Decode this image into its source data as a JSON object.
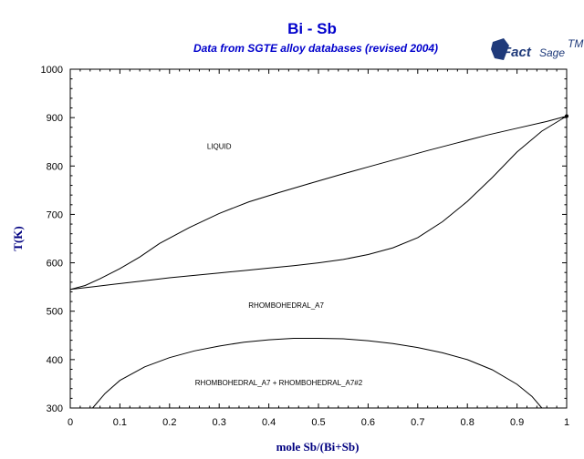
{
  "chart_data": {
    "type": "line",
    "title": "Bi - Sb",
    "subtitle": "Data from SGTE alloy databases (revised 2004)",
    "logo": {
      "brand": "Fact",
      "brand2": "Sage",
      "mark": "TM"
    },
    "xlabel": "mole Sb/(Bi+Sb)",
    "ylabel": "T(K)",
    "xlim": [
      0,
      1
    ],
    "ylim": [
      300,
      1000
    ],
    "xticks": [
      0,
      0.1,
      0.2,
      0.3,
      0.4,
      0.5,
      0.6,
      0.7,
      0.8,
      0.9,
      1
    ],
    "yticks": [
      300,
      400,
      500,
      600,
      700,
      800,
      900,
      1000
    ],
    "grid": false,
    "series": [
      {
        "x": [
          0,
          0.03,
          0.06,
          0.1,
          0.14,
          0.18,
          0.24,
          0.3,
          0.36,
          0.42,
          0.48,
          0.54,
          0.6,
          0.66,
          0.72,
          0.78,
          0.84,
          0.9,
          0.96,
          1.0
        ],
        "y": [
          545,
          553,
          567,
          588,
          612,
          640,
          673,
          702,
          726,
          745,
          763,
          781,
          798,
          815,
          832,
          848,
          864,
          878,
          892,
          903
        ]
      },
      {
        "x": [
          0,
          0.05,
          0.1,
          0.15,
          0.2,
          0.25,
          0.3,
          0.35,
          0.4,
          0.45,
          0.5,
          0.55,
          0.6,
          0.65,
          0.7,
          0.75,
          0.8,
          0.85,
          0.9,
          0.95,
          1.0
        ],
        "y": [
          545,
          551,
          557,
          563,
          569,
          574,
          579,
          584,
          589,
          594,
          600,
          607,
          617,
          631,
          652,
          685,
          727,
          776,
          829,
          872,
          903
        ]
      },
      {
        "x": [
          0.045,
          0.07,
          0.1,
          0.15,
          0.2,
          0.25,
          0.3,
          0.35,
          0.4,
          0.45,
          0.5,
          0.55,
          0.6,
          0.65,
          0.7,
          0.75,
          0.8,
          0.85,
          0.9,
          0.93,
          0.95
        ],
        "y": [
          300,
          330,
          357,
          385,
          404,
          418,
          428,
          436,
          441,
          444,
          444,
          443,
          439,
          433,
          425,
          414,
          400,
          379,
          349,
          324,
          300
        ]
      }
    ],
    "annotations": [
      {
        "text": "LIQUID",
        "x": 0.3,
        "y": 835
      },
      {
        "text": "RHOMBOHEDRAL_A7",
        "x": 0.435,
        "y": 507
      },
      {
        "text": "RHOMBOHEDRAL_A7 + RHOMBOHEDRAL_A7#2",
        "x": 0.42,
        "y": 347
      }
    ]
  }
}
